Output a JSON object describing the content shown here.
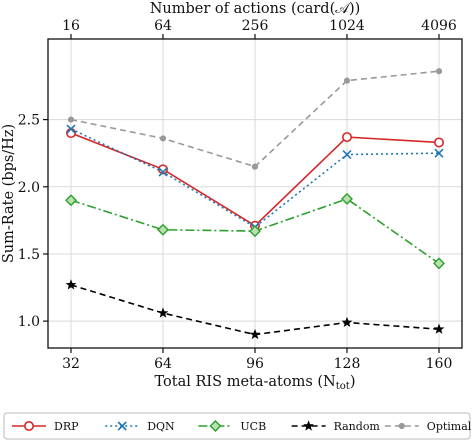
{
  "chart_data": {
    "type": "line",
    "x": [
      32,
      64,
      96,
      128,
      160
    ],
    "xlabel": "Total RIS meta-atoms (N",
    "xlabel_sub": "tot",
    "xlabel_suffix": ")",
    "x_top_ticks": [
      "16",
      "64",
      "256",
      "1024",
      "4096"
    ],
    "x_top_label": "Number of actions (card(𝒜))",
    "ylabel": "Sum-Rate  (bps/Hz)",
    "ylim": [
      0.8,
      3.1
    ],
    "xlim": [
      24,
      168
    ],
    "yticks": [
      1.0,
      1.5,
      2.0,
      2.5
    ],
    "ytick_labels": [
      "1.0",
      "1.5",
      "2.0",
      "2.5"
    ],
    "xtick_labels": [
      "32",
      "64",
      "96",
      "128",
      "160"
    ],
    "grid": true,
    "legend_position": "bottom-outside",
    "series": [
      {
        "name": "DRP",
        "values": [
          2.4,
          2.13,
          1.71,
          2.37,
          2.33
        ],
        "color": "#d62728",
        "dash": "",
        "marker": "circle"
      },
      {
        "name": "DQN",
        "values": [
          2.43,
          2.11,
          1.7,
          2.24,
          2.25
        ],
        "color": "#1f77b4",
        "dash": "2 3",
        "marker": "x"
      },
      {
        "name": "UCB",
        "values": [
          1.9,
          1.68,
          1.67,
          1.91,
          1.43
        ],
        "color": "#2ca02c",
        "dash": "9 3 2 3",
        "marker": "diamond"
      },
      {
        "name": "Random",
        "values": [
          1.27,
          1.06,
          0.9,
          0.99,
          0.94
        ],
        "color": "#000000",
        "dash": "6 4",
        "marker": "star"
      },
      {
        "name": "Optimal",
        "values": [
          2.5,
          2.36,
          2.15,
          2.79,
          2.86
        ],
        "color": "#999999",
        "dash": "6 4",
        "marker": "dot"
      }
    ]
  }
}
